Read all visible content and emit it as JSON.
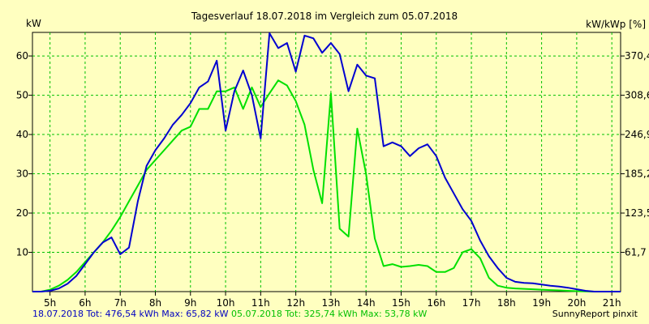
{
  "chart_data": {
    "type": "line",
    "title": "Tagesverlauf 18.07.2018 im Vergleich zum 05.07.2018",
    "ylabel_left": "kW",
    "ylabel_right": "kW/kWp [%]",
    "xlim": [
      4.5,
      21.25
    ],
    "ylim": [
      0,
      66
    ],
    "x_ticks": [
      {
        "x": 5,
        "label": "5h"
      },
      {
        "x": 6,
        "label": "6h"
      },
      {
        "x": 7,
        "label": "7h"
      },
      {
        "x": 8,
        "label": "8h"
      },
      {
        "x": 9,
        "label": "9h"
      },
      {
        "x": 10,
        "label": "10h"
      },
      {
        "x": 11,
        "label": "11h"
      },
      {
        "x": 12,
        "label": "12h"
      },
      {
        "x": 13,
        "label": "13h"
      },
      {
        "x": 14,
        "label": "14h"
      },
      {
        "x": 15,
        "label": "15h"
      },
      {
        "x": 16,
        "label": "16h"
      },
      {
        "x": 17,
        "label": "17h"
      },
      {
        "x": 18,
        "label": "18h"
      },
      {
        "x": 19,
        "label": "19h"
      },
      {
        "x": 20,
        "label": "20h"
      },
      {
        "x": 21,
        "label": "21h"
      }
    ],
    "y_ticks_left": [
      {
        "y": 10,
        "label": "10"
      },
      {
        "y": 20,
        "label": "20"
      },
      {
        "y": 30,
        "label": "30"
      },
      {
        "y": 40,
        "label": "40"
      },
      {
        "y": 50,
        "label": "50"
      },
      {
        "y": 60,
        "label": "60"
      }
    ],
    "y_ticks_right": [
      {
        "y": 10,
        "label": "61,7"
      },
      {
        "y": 20,
        "label": "123,5"
      },
      {
        "y": 30,
        "label": "185,2"
      },
      {
        "y": 40,
        "label": "246,9"
      },
      {
        "y": 50,
        "label": "308,6"
      },
      {
        "y": 60,
        "label": "370,4"
      }
    ],
    "grid": true,
    "series": [
      {
        "name": "18.07.2018",
        "color": "#0000d0",
        "points": [
          [
            4.5,
            0
          ],
          [
            4.75,
            0
          ],
          [
            5.0,
            0.2
          ],
          [
            5.25,
            0.8
          ],
          [
            5.5,
            2
          ],
          [
            5.75,
            4
          ],
          [
            6.0,
            7
          ],
          [
            6.25,
            10
          ],
          [
            6.5,
            12.5
          ],
          [
            6.75,
            13.8
          ],
          [
            7.0,
            9.5
          ],
          [
            7.25,
            11.2
          ],
          [
            7.5,
            23
          ],
          [
            7.75,
            32
          ],
          [
            8.0,
            36
          ],
          [
            8.25,
            39
          ],
          [
            8.5,
            42.5
          ],
          [
            8.75,
            45
          ],
          [
            9.0,
            48
          ],
          [
            9.25,
            52
          ],
          [
            9.5,
            53.5
          ],
          [
            9.75,
            58.8
          ],
          [
            10.0,
            41
          ],
          [
            10.25,
            51
          ],
          [
            10.5,
            56.3
          ],
          [
            10.75,
            50
          ],
          [
            11.0,
            39
          ],
          [
            11.25,
            65.8
          ],
          [
            11.5,
            62
          ],
          [
            11.75,
            63.3
          ],
          [
            12.0,
            56
          ],
          [
            12.25,
            65.2
          ],
          [
            12.5,
            64.5
          ],
          [
            12.75,
            60.8
          ],
          [
            13.0,
            63.3
          ],
          [
            13.25,
            60.5
          ],
          [
            13.5,
            51
          ],
          [
            13.75,
            57.8
          ],
          [
            14.0,
            55
          ],
          [
            14.25,
            54.3
          ],
          [
            14.5,
            37
          ],
          [
            14.75,
            38
          ],
          [
            15.0,
            37
          ],
          [
            15.25,
            34.5
          ],
          [
            15.5,
            36.5
          ],
          [
            15.75,
            37.5
          ],
          [
            16.0,
            34.5
          ],
          [
            16.25,
            29
          ],
          [
            16.5,
            25
          ],
          [
            16.75,
            21
          ],
          [
            17.0,
            18
          ],
          [
            17.25,
            13
          ],
          [
            17.5,
            9
          ],
          [
            17.75,
            6
          ],
          [
            18.0,
            3.5
          ],
          [
            18.25,
            2.5
          ],
          [
            18.5,
            2.2
          ],
          [
            18.75,
            2.1
          ],
          [
            19.0,
            1.8
          ],
          [
            19.25,
            1.5
          ],
          [
            19.5,
            1.3
          ],
          [
            19.75,
            1
          ],
          [
            20.0,
            0.6
          ],
          [
            20.25,
            0.2
          ],
          [
            20.5,
            0
          ],
          [
            21.0,
            0
          ],
          [
            21.25,
            0
          ]
        ]
      },
      {
        "name": "05.07.2018",
        "color": "#00e000",
        "points": [
          [
            4.5,
            0
          ],
          [
            4.75,
            0
          ],
          [
            5.0,
            0.5
          ],
          [
            5.25,
            1.5
          ],
          [
            5.5,
            3
          ],
          [
            5.75,
            5
          ],
          [
            6.0,
            7.5
          ],
          [
            6.25,
            10
          ],
          [
            6.5,
            12.5
          ],
          [
            6.75,
            15.5
          ],
          [
            7.0,
            19
          ],
          [
            7.25,
            23
          ],
          [
            7.5,
            27
          ],
          [
            7.75,
            31
          ],
          [
            8.0,
            33.5
          ],
          [
            8.25,
            36
          ],
          [
            8.5,
            38.5
          ],
          [
            8.75,
            41
          ],
          [
            9.0,
            42
          ],
          [
            9.25,
            46.5
          ],
          [
            9.5,
            46.5
          ],
          [
            9.75,
            51
          ],
          [
            10.0,
            51
          ],
          [
            10.25,
            52
          ],
          [
            10.5,
            46.5
          ],
          [
            10.75,
            52
          ],
          [
            11.0,
            47
          ],
          [
            11.25,
            50.5
          ],
          [
            11.5,
            53.8
          ],
          [
            11.75,
            52.5
          ],
          [
            12.0,
            48.5
          ],
          [
            12.25,
            42.5
          ],
          [
            12.5,
            31
          ],
          [
            12.75,
            22.5
          ],
          [
            13.0,
            50.5
          ],
          [
            13.25,
            16
          ],
          [
            13.5,
            14
          ],
          [
            13.75,
            41.5
          ],
          [
            14.0,
            30
          ],
          [
            14.25,
            13.5
          ],
          [
            14.5,
            6.5
          ],
          [
            14.75,
            7
          ],
          [
            15.0,
            6.3
          ],
          [
            15.25,
            6.5
          ],
          [
            15.5,
            6.8
          ],
          [
            15.75,
            6.5
          ],
          [
            16.0,
            5
          ],
          [
            16.25,
            5
          ],
          [
            16.5,
            6
          ],
          [
            16.75,
            10
          ],
          [
            17.0,
            10.8
          ],
          [
            17.25,
            8.5
          ],
          [
            17.5,
            3.5
          ],
          [
            17.75,
            1.5
          ],
          [
            18.0,
            1
          ],
          [
            18.25,
            0.8
          ],
          [
            18.5,
            0.7
          ],
          [
            18.75,
            0.6
          ],
          [
            19.0,
            0.5
          ],
          [
            19.25,
            0.4
          ],
          [
            19.5,
            0.3
          ],
          [
            19.75,
            0.2
          ],
          [
            20.0,
            0.1
          ],
          [
            20.5,
            0
          ],
          [
            21.0,
            0
          ],
          [
            21.25,
            0
          ]
        ]
      }
    ]
  },
  "footer": {
    "blue_text": "18.07.2018 Tot: 476,54 kWh Max: 65,82 kW",
    "green_text": " 05.07.2018 Tot: 325,74 kWh Max: 53,78 kW",
    "credit": "SunnyReport pinxit",
    "blue_color": "#0000c0",
    "green_color": "#00c000"
  }
}
